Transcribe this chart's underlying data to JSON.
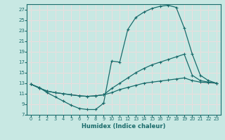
{
  "bg_color": "#c8e8e3",
  "grid_color": "#dff0ed",
  "line_color": "#1a6b6b",
  "xlabel": "Humidex (Indice chaleur)",
  "xlim": [
    -0.5,
    23.5
  ],
  "ylim": [
    7,
    28
  ],
  "xtick_vals": [
    0,
    1,
    2,
    3,
    4,
    5,
    6,
    7,
    8,
    9,
    10,
    11,
    12,
    13,
    14,
    15,
    16,
    17,
    18,
    19,
    20,
    21,
    22,
    23
  ],
  "ytick_vals": [
    7,
    9,
    11,
    13,
    15,
    17,
    19,
    21,
    23,
    25,
    27
  ],
  "curve_bottom_dip": {
    "x": [
      0,
      1,
      2,
      3,
      4,
      5,
      6,
      7,
      8,
      9
    ],
    "y": [
      12.8,
      12.2,
      11.2,
      10.4,
      9.6,
      8.8,
      8.2,
      8.0,
      8.0,
      9.2
    ]
  },
  "curve_lower_flat": {
    "x": [
      0,
      1,
      2,
      3,
      4,
      5,
      6,
      7,
      8,
      9,
      10,
      11,
      12,
      13,
      14,
      15,
      16,
      17,
      18,
      19,
      20,
      21,
      22,
      23
    ],
    "y": [
      12.8,
      12.1,
      11.5,
      11.2,
      11.0,
      10.8,
      10.6,
      10.5,
      10.6,
      10.8,
      11.2,
      11.8,
      12.2,
      12.6,
      13.0,
      13.2,
      13.4,
      13.6,
      13.8,
      14.0,
      13.5,
      13.2,
      13.1,
      13.0
    ]
  },
  "curve_middle": {
    "x": [
      0,
      1,
      2,
      3,
      4,
      5,
      6,
      7,
      8,
      9,
      10,
      11,
      12,
      13,
      14,
      15,
      16,
      17,
      18,
      19,
      20,
      21,
      22,
      23
    ],
    "y": [
      12.8,
      12.1,
      11.5,
      11.2,
      11.0,
      10.8,
      10.6,
      10.5,
      10.6,
      10.8,
      12.0,
      13.0,
      14.0,
      15.0,
      15.8,
      16.5,
      17.0,
      17.5,
      18.0,
      18.5,
      14.5,
      13.5,
      13.2,
      13.0
    ]
  },
  "curve_top": {
    "x": [
      9,
      10,
      11,
      12,
      13,
      14,
      15,
      16,
      17,
      18,
      19,
      20,
      21,
      22,
      23
    ],
    "y": [
      9.2,
      17.2,
      17.0,
      23.2,
      25.5,
      26.5,
      27.2,
      27.6,
      27.8,
      27.4,
      23.5,
      18.5,
      14.5,
      13.5,
      13.0
    ]
  }
}
